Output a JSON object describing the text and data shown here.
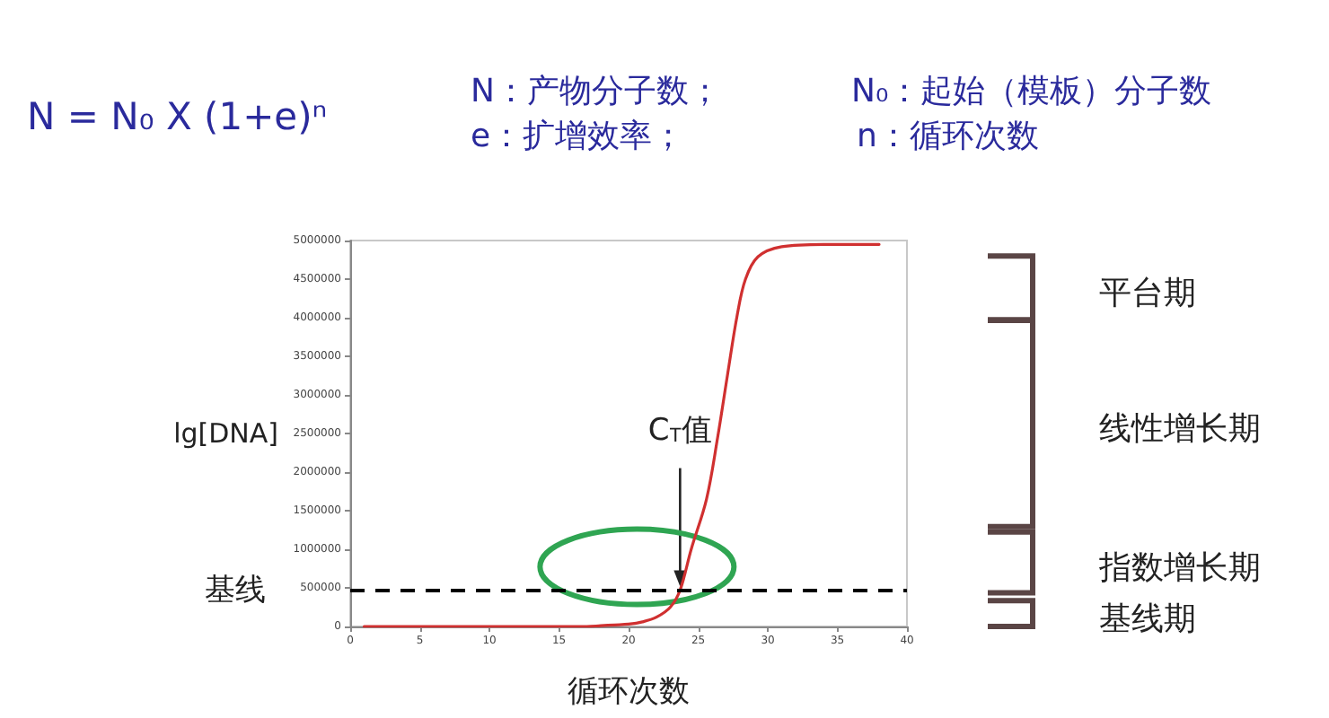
{
  "chart_data": {
    "type": "line",
    "xlabel": "循环次数",
    "ylabel": "lg[DNA]",
    "x": [
      1,
      5,
      10,
      15,
      17,
      18,
      19,
      20,
      21,
      22,
      23,
      23.7,
      24.5,
      25.6,
      26.4,
      27.1,
      27.8,
      28.4,
      29.3,
      31,
      34,
      38
    ],
    "series": [
      {
        "color": "#d03030",
        "values": [
          0,
          0,
          0,
          0,
          0,
          10000,
          20000,
          30000,
          60000,
          120000,
          250000,
          470000,
          1000000,
          1650000,
          2450000,
          3250000,
          4030000,
          4500000,
          4790000,
          4920000,
          4950000,
          4950000
        ]
      }
    ],
    "xlim": [
      0,
      40
    ],
    "xticks": [
      0,
      5,
      10,
      15,
      20,
      25,
      30,
      35,
      40
    ],
    "ylim": [
      0,
      5000000
    ],
    "yticks": [
      0,
      500000,
      1000000,
      1500000,
      2000000,
      2500000,
      3000000,
      3500000,
      4000000,
      4500000,
      5000000
    ],
    "grid": false,
    "marker": "none",
    "line_style": "solid",
    "ref_lines": [
      {
        "axis": "y",
        "value": 470000,
        "label": "基线",
        "color": "#000000",
        "line_style": "dashed"
      }
    ],
    "annotations": [
      "N = N₀ X (1+e)ⁿ",
      "N：产物分子数；",
      "e：扩增效率；",
      "N₀：起始（模板）分子数",
      "n：循环次数",
      "平台期",
      "线性增长期",
      "指数增长期",
      "基线期",
      {
        "text": "C$_{T}$值",
        "x": 23.7,
        "y": 470000
      }
    ]
  }
}
